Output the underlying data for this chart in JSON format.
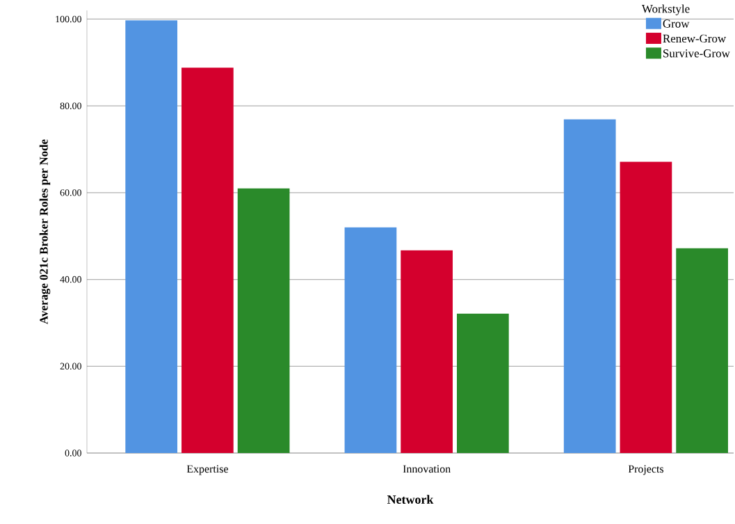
{
  "chart_data": {
    "type": "bar",
    "categories": [
      "Expertise",
      "Innovation",
      "Projects"
    ],
    "series": [
      {
        "name": "Grow",
        "color": "#5294e2",
        "values": [
          99.7,
          52.0,
          76.9
        ]
      },
      {
        "name": "Renew-Grow",
        "color": "#d4002d",
        "values": [
          88.8,
          46.7,
          67.1
        ]
      },
      {
        "name": "Survive-Grow",
        "color": "#2a8a2a",
        "values": [
          61.0,
          32.1,
          47.2
        ]
      }
    ],
    "xlabel": "Network",
    "ylabel": "Average 021c Broker Roles per Node",
    "legend_title": "Workstyle",
    "legend": "top right",
    "grid": "y",
    "ylim": [
      0,
      102
    ],
    "yticks": [
      {
        "value": 0,
        "label": "0.00"
      },
      {
        "value": 20,
        "label": "20.00"
      },
      {
        "value": 40,
        "label": "40.00"
      },
      {
        "value": 60,
        "label": "60.00"
      },
      {
        "value": 80,
        "label": "80.00"
      },
      {
        "value": 100,
        "label": "100.00"
      }
    ]
  }
}
